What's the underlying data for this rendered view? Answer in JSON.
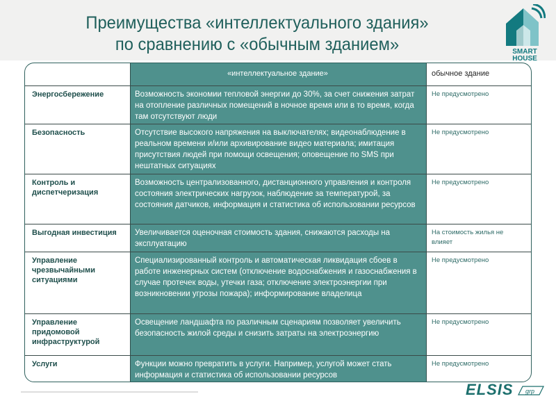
{
  "title": {
    "line1": "Преимущества «интеллектуального здания»",
    "line2": "по сравнению с «обычным зданием»"
  },
  "logo": {
    "text1": "SMART",
    "text2": "HOUSE"
  },
  "table": {
    "headers": [
      "",
      "«интеллектуальное здание»",
      "обычное здание"
    ],
    "rows": [
      {
        "feature": "Энергосбережение",
        "smart": "Возможность экономии тепловой энергии до 30%, за счет снижения затрат на отопление различных помещений в ночное время или в то время, когда там отсутствуют люди",
        "regular": "Не предусмотрено"
      },
      {
        "feature": "Безопасность",
        "smart": "Отсутствие высокого напряжения на выключателях; видеонаблюдение в реальном времени и/или архивирование видео материала; имитация присутствия людей при помощи освещения; оповещение по SMS при нештатных ситуациях",
        "regular": "Не предусмотрено"
      },
      {
        "feature": "Контроль и диспетчеризация",
        "smart": "Возможность централизованного, дистанционного управления и контроля состояния электрических нагрузок, наблюдение за температурой, за состояния датчиков, информация и статистика об использовании ресурсов",
        "regular": "Не предусмотрено"
      },
      {
        "feature": "Выгодная инвестиция",
        "smart": "Увеличивается оценочная стоимость здания, снижаются расходы на эксплуатацию",
        "regular": "На стоимость жилья не влияет"
      },
      {
        "feature": "Управление чрезвычайными ситуациями",
        "smart": "Специализированный контроль и автоматическая ликвидация сбоев в работе инженерных систем (отключение водоснабжения и газоснабжения в случае протечек воды, утечки газа; отключение электроэнергии при возникновении угрозы пожара); информирование владелица",
        "regular": "Не предусмотрено"
      },
      {
        "feature": "Управление придомовой инфраструктурой",
        "smart": "Освещение ландшафта по различным сценариям позволяет увеличить безопасность жилой среды и снизить затраты на электроэнергию",
        "regular": "Не предусмотрено"
      },
      {
        "feature": "Услуги",
        "smart": "Функции можно превратить в услуги. Например, услугой может стать информация и статистика об использовании ресурсов",
        "regular": "Не предусмотрено"
      }
    ]
  },
  "footer_logo": {
    "text": "ELSIS",
    "suffix": "grp"
  },
  "colors": {
    "teal": "#4f918d",
    "title": "#1f5f5b"
  }
}
